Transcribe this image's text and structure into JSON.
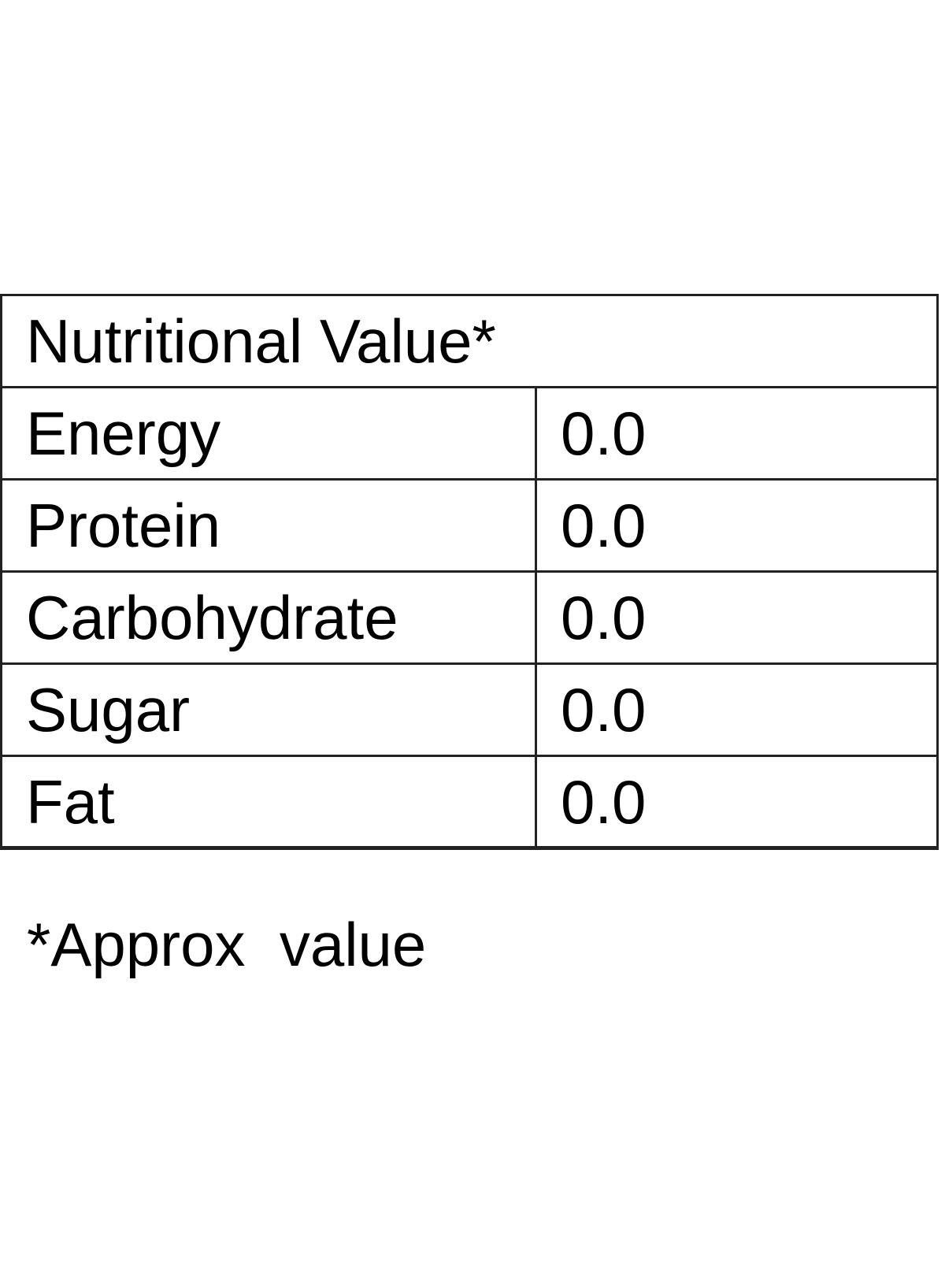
{
  "table": {
    "title": "Nutritional Value*",
    "rows": [
      [
        "Energy",
        "0.0"
      ],
      [
        "Protein",
        "0.0"
      ],
      [
        "Carbohydrate",
        "0.0"
      ],
      [
        "Sugar",
        "0.0"
      ],
      [
        "Fat",
        "0.0"
      ]
    ]
  },
  "footnote": "*Approx  value"
}
